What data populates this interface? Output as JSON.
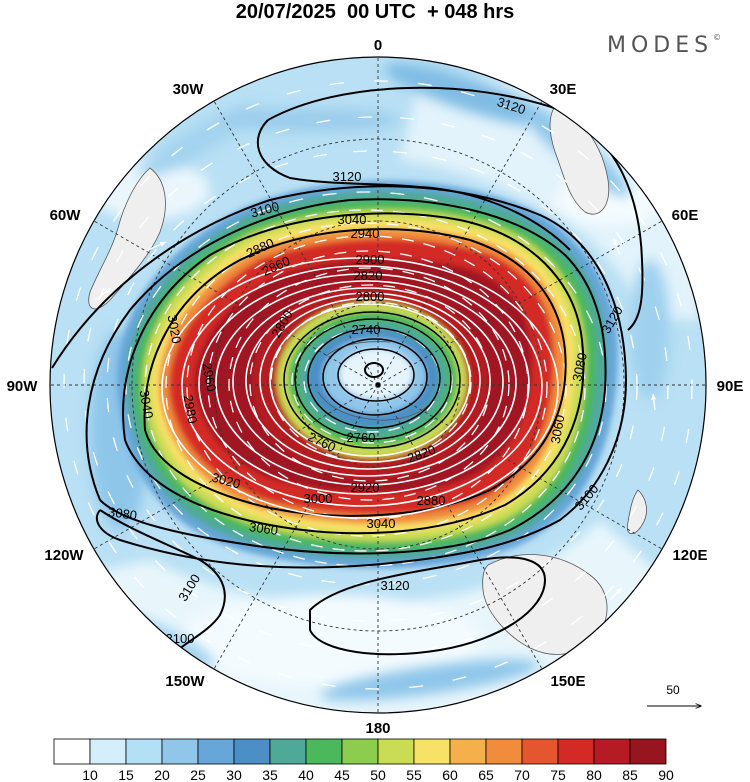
{
  "title": "20/07/2025  00 UTC  + 048 hrs",
  "brand": "MODES",
  "brand_mark": "©",
  "longitude_labels": {
    "lon_0": "0",
    "lon_30e": "30E",
    "lon_60e": "60E",
    "lon_90e": "90E",
    "lon_120e": "120E",
    "lon_150e": "150E",
    "lon_180": "180",
    "lon_150w": "150W",
    "lon_120w": "120W",
    "lon_90w": "90W",
    "lon_60w": "60W",
    "lon_30w": "30W"
  },
  "contour_labels": {
    "c3120_n": "3120",
    "c3120_ne": "3120",
    "c3120_e": "3120",
    "c3120_s": "3120",
    "c3100_n": "3100",
    "c3100_se": "3100",
    "c3100_sw": "3100",
    "c3100_sw2": "3100",
    "c3080_w": "3080",
    "c3080_e": "3080",
    "c3060_e": "3060",
    "c3060_s": "3060",
    "c3040_w": "3040",
    "c3040_s": "3040",
    "c3040_n": "3040",
    "c3020_s": "3020",
    "c3020_w": "3020",
    "c3000_s": "3000",
    "c2980_w": "2980",
    "c2960_w": "2960",
    "c2940_n": "2940",
    "c2920_s": "2920",
    "c2900_n": "2900",
    "c2880_nw": "2880",
    "c2880_s": "2880",
    "c2860_nw": "2860",
    "c2820_n": "2820",
    "c2820_s": "2820",
    "c2800_n": "2800",
    "c2800_w": "2800",
    "c2760_w": "2760",
    "c2760_s": "2760",
    "c2740_n": "2740"
  },
  "legend": {
    "arrow_reference": "50",
    "bins": [
      "10",
      "15",
      "20",
      "25",
      "30",
      "35",
      "40",
      "45",
      "50",
      "55",
      "60",
      "65",
      "70",
      "75",
      "80",
      "85",
      "90"
    ],
    "colors": [
      "#ffffff",
      "#d4effb",
      "#b4e0f5",
      "#8fc6ea",
      "#66a6d9",
      "#4b8fc6",
      "#4fa999",
      "#4cb85c",
      "#8ccc4e",
      "#c9dc54",
      "#f7e167",
      "#f6b04b",
      "#f08c3c",
      "#e4562e",
      "#d42a26",
      "#b51b24",
      "#96151e"
    ]
  }
}
